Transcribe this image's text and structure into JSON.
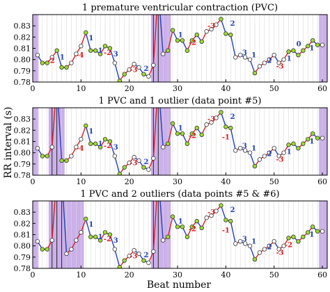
{
  "figure": {
    "xlabel": "Beat number",
    "ylabel": "RR interval (s)"
  },
  "chart_data": [
    {
      "type": "line",
      "title": "1 premature ventricular contraction (PVC)",
      "xlim": [
        0,
        61
      ],
      "ylim": [
        0.78,
        0.84
      ],
      "yticks": [
        0.78,
        0.79,
        0.8,
        0.81,
        0.82,
        0.83
      ],
      "xticks": [
        0,
        10,
        20,
        30,
        40,
        50,
        60
      ],
      "shaded": [
        [
          0,
          1.2
        ],
        [
          24.5,
          28.6
        ],
        [
          59.3,
          61
        ]
      ],
      "x": [
        1,
        2,
        3,
        4,
        5,
        6,
        7,
        8,
        9,
        10,
        11,
        12,
        13,
        14,
        15,
        16,
        17,
        18,
        19,
        20,
        21,
        22,
        23,
        24,
        25,
        26,
        27,
        28,
        29,
        30,
        31,
        32,
        33,
        34,
        35,
        36,
        37,
        38,
        39,
        40,
        41,
        42,
        43,
        44,
        45,
        46,
        47,
        48,
        49,
        50,
        51,
        52,
        53,
        54,
        55,
        56,
        57,
        58,
        59,
        60
      ],
      "y": [
        0.804,
        0.797,
        0.797,
        0.802,
        0.808,
        0.793,
        0.793,
        0.797,
        0.805,
        0.812,
        0.824,
        0.808,
        0.808,
        0.805,
        0.812,
        0.81,
        0.797,
        0.781,
        0.787,
        0.791,
        0.796,
        0.793,
        0.787,
        0.785,
        0.795,
        0.863,
        0.805,
        0.808,
        0.826,
        0.817,
        0.817,
        0.808,
        0.817,
        0.822,
        0.816,
        0.825,
        0.827,
        0.831,
        0.836,
        0.823,
        0.822,
        0.802,
        0.804,
        0.802,
        0.8,
        0.788,
        0.794,
        0.797,
        0.8,
        0.804,
        0.797,
        0.8,
        0.807,
        0.808,
        0.804,
        0.808,
        0.812,
        0.817,
        0.813,
        0.813
      ],
      "markers": [
        "o",
        "g",
        "g",
        "o",
        "g",
        "g",
        "g",
        "o",
        "o",
        "o",
        "g",
        "g",
        "g",
        "g",
        "g",
        "g",
        "o",
        "g",
        "g",
        "o",
        "o",
        "o",
        "g",
        "o",
        "o",
        "o",
        "o",
        "g",
        "g",
        "g",
        "g",
        "g",
        "g",
        "g",
        "g",
        "o",
        "o",
        "o",
        "g",
        "g",
        "g",
        "o",
        "o",
        "o",
        "o",
        "g",
        "o",
        "o",
        "o",
        "o",
        "o",
        "o",
        "g",
        "g",
        "g",
        "g",
        "g",
        "g",
        "g",
        "o"
      ],
      "vlines": [
        25,
        26
      ],
      "annotations": [
        {
          "text": "-2",
          "x": 3.8,
          "y": 0.797,
          "color": "#e31a1c"
        },
        {
          "text": "1",
          "x": 6.1,
          "y": 0.8,
          "color": "#1f3fbf"
        },
        {
          "text": "-4",
          "x": 9.8,
          "y": 0.802,
          "color": "#e31a1c"
        },
        {
          "text": "1",
          "x": 12.1,
          "y": 0.817,
          "color": "#1f3fbf"
        },
        {
          "text": "1",
          "x": 14.0,
          "y": 0.806,
          "color": "#1f3fbf"
        },
        {
          "text": "-2",
          "x": 15.5,
          "y": 0.804,
          "color": "#e31a1c"
        },
        {
          "text": "3",
          "x": 17.2,
          "y": 0.803,
          "color": "#1f3fbf"
        },
        {
          "text": "-3",
          "x": 20.9,
          "y": 0.789,
          "color": "#e31a1c"
        },
        {
          "text": "2",
          "x": 23.5,
          "y": 0.79,
          "color": "#1f3fbf"
        },
        {
          "text": "1",
          "x": 30.6,
          "y": 0.82,
          "color": "#1f3fbf"
        },
        {
          "text": "-2",
          "x": 33.1,
          "y": 0.813,
          "color": "#e31a1c"
        },
        {
          "text": "-3",
          "x": 37.0,
          "y": 0.828,
          "color": "#e31a1c"
        },
        {
          "text": "2",
          "x": 41.4,
          "y": 0.83,
          "color": "#1f3fbf"
        },
        {
          "text": "3",
          "x": 43.9,
          "y": 0.804,
          "color": "#1f3fbf"
        },
        {
          "text": "1",
          "x": 45.8,
          "y": 0.802,
          "color": "#1f3fbf"
        },
        {
          "text": "2",
          "x": 49.0,
          "y": 0.797,
          "color": "#1f3fbf"
        },
        {
          "text": "-3",
          "x": 51.2,
          "y": 0.792,
          "color": "#e31a1c"
        },
        {
          "text": "1",
          "x": 53.1,
          "y": 0.799,
          "color": "#1f3fbf"
        },
        {
          "text": "0",
          "x": 55.1,
          "y": 0.812,
          "color": "#1f3fbf"
        },
        {
          "text": "1",
          "x": 57.8,
          "y": 0.808,
          "color": "#1f3fbf"
        }
      ]
    },
    {
      "type": "line",
      "title": "1 PVC and 1 outlier (data point #5)",
      "xlim": [
        0,
        61
      ],
      "ylim": [
        0.78,
        0.84
      ],
      "yticks": [
        0.78,
        0.79,
        0.8,
        0.81,
        0.82,
        0.83
      ],
      "xticks": [
        0,
        10,
        20,
        30,
        40,
        50,
        60
      ],
      "shaded": [
        [
          0,
          1.2
        ],
        [
          3.3,
          6.6
        ],
        [
          24.5,
          28.6
        ],
        [
          59.3,
          61
        ]
      ],
      "x": [
        1,
        2,
        3,
        4,
        5,
        6,
        7,
        8,
        9,
        10,
        11,
        12,
        13,
        14,
        15,
        16,
        17,
        18,
        19,
        20,
        21,
        22,
        23,
        24,
        25,
        26,
        27,
        28,
        29,
        30,
        31,
        32,
        33,
        34,
        35,
        36,
        37,
        38,
        39,
        40,
        41,
        42,
        43,
        44,
        45,
        46,
        47,
        48,
        49,
        50,
        51,
        52,
        53,
        54,
        55,
        56,
        57,
        58,
        59,
        60
      ],
      "y": [
        0.804,
        0.797,
        0.797,
        0.805,
        0.863,
        0.793,
        0.793,
        0.797,
        0.805,
        0.812,
        0.824,
        0.808,
        0.808,
        0.805,
        0.812,
        0.81,
        0.797,
        0.781,
        0.787,
        0.791,
        0.796,
        0.793,
        0.787,
        0.785,
        0.795,
        0.863,
        0.805,
        0.808,
        0.826,
        0.817,
        0.817,
        0.808,
        0.817,
        0.822,
        0.816,
        0.825,
        0.827,
        0.831,
        0.836,
        0.823,
        0.822,
        0.802,
        0.804,
        0.802,
        0.8,
        0.788,
        0.794,
        0.797,
        0.8,
        0.804,
        0.797,
        0.8,
        0.807,
        0.808,
        0.804,
        0.808,
        0.812,
        0.817,
        0.813,
        0.813
      ],
      "markers": [
        "o",
        "g",
        "g",
        "o",
        "o",
        "g",
        "g",
        "o",
        "o",
        "o",
        "g",
        "g",
        "g",
        "g",
        "g",
        "g",
        "o",
        "g",
        "g",
        "o",
        "o",
        "o",
        "g",
        "o",
        "o",
        "o",
        "o",
        "g",
        "g",
        "g",
        "g",
        "g",
        "g",
        "g",
        "g",
        "o",
        "o",
        "o",
        "g",
        "g",
        "g",
        "o",
        "o",
        "o",
        "o",
        "g",
        "o",
        "o",
        "o",
        "o",
        "o",
        "o",
        "g",
        "g",
        "g",
        "g",
        "g",
        "g",
        "g",
        "o"
      ],
      "vlines": [
        4,
        5,
        25,
        26
      ],
      "annotations": [
        {
          "text": "-4",
          "x": 9.8,
          "y": 0.802,
          "color": "#e31a1c"
        },
        {
          "text": "1",
          "x": 12.1,
          "y": 0.817,
          "color": "#1f3fbf"
        },
        {
          "text": "1",
          "x": 14.0,
          "y": 0.806,
          "color": "#1f3fbf"
        },
        {
          "text": "-2",
          "x": 15.5,
          "y": 0.804,
          "color": "#e31a1c"
        },
        {
          "text": "3",
          "x": 17.2,
          "y": 0.803,
          "color": "#1f3fbf"
        },
        {
          "text": "-3",
          "x": 20.9,
          "y": 0.789,
          "color": "#e31a1c"
        },
        {
          "text": "2",
          "x": 23.5,
          "y": 0.79,
          "color": "#1f3fbf"
        },
        {
          "text": "1",
          "x": 30.6,
          "y": 0.82,
          "color": "#1f3fbf"
        },
        {
          "text": "-2",
          "x": 33.1,
          "y": 0.813,
          "color": "#e31a1c"
        },
        {
          "text": "-3",
          "x": 37.0,
          "y": 0.828,
          "color": "#e31a1c"
        },
        {
          "text": "-1",
          "x": 40.0,
          "y": 0.812,
          "color": "#e31a1c"
        },
        {
          "text": "2",
          "x": 41.4,
          "y": 0.83,
          "color": "#1f3fbf"
        },
        {
          "text": "3",
          "x": 43.9,
          "y": 0.804,
          "color": "#1f3fbf"
        },
        {
          "text": "1",
          "x": 45.8,
          "y": 0.802,
          "color": "#1f3fbf"
        },
        {
          "text": "2",
          "x": 49.0,
          "y": 0.797,
          "color": "#1f3fbf"
        },
        {
          "text": "-3",
          "x": 51.2,
          "y": 0.792,
          "color": "#e31a1c"
        },
        {
          "text": "1",
          "x": 53.1,
          "y": 0.799,
          "color": "#1f3fbf"
        },
        {
          "text": "1",
          "x": 57.8,
          "y": 0.808,
          "color": "#1f3fbf"
        }
      ]
    },
    {
      "type": "line",
      "title": "1 PVC and 2 outliers (data points #5 & #6)",
      "xlim": [
        0,
        61
      ],
      "ylim": [
        0.78,
        0.84
      ],
      "yticks": [
        0.78,
        0.79,
        0.8,
        0.81,
        0.82,
        0.83
      ],
      "xticks": [
        0,
        10,
        20,
        30,
        40,
        50,
        60
      ],
      "shaded": [
        [
          0,
          1.2
        ],
        [
          3.3,
          10.6
        ],
        [
          24.5,
          28.6
        ],
        [
          59.3,
          61
        ]
      ],
      "x": [
        1,
        2,
        3,
        4,
        5,
        6,
        7,
        8,
        9,
        10,
        11,
        12,
        13,
        14,
        15,
        16,
        17,
        18,
        19,
        20,
        21,
        22,
        23,
        24,
        25,
        26,
        27,
        28,
        29,
        30,
        31,
        32,
        33,
        34,
        35,
        36,
        37,
        38,
        39,
        40,
        41,
        42,
        43,
        44,
        45,
        46,
        47,
        48,
        49,
        50,
        51,
        52,
        53,
        54,
        55,
        56,
        57,
        58,
        59,
        60
      ],
      "y": [
        0.804,
        0.797,
        0.797,
        0.805,
        0.863,
        0.863,
        0.793,
        0.797,
        0.805,
        0.812,
        0.824,
        0.808,
        0.808,
        0.805,
        0.812,
        0.81,
        0.797,
        0.781,
        0.787,
        0.791,
        0.796,
        0.793,
        0.787,
        0.785,
        0.795,
        0.863,
        0.805,
        0.808,
        0.826,
        0.817,
        0.817,
        0.808,
        0.817,
        0.822,
        0.816,
        0.825,
        0.827,
        0.831,
        0.836,
        0.823,
        0.822,
        0.802,
        0.804,
        0.802,
        0.8,
        0.788,
        0.794,
        0.797,
        0.8,
        0.804,
        0.797,
        0.8,
        0.807,
        0.808,
        0.804,
        0.808,
        0.812,
        0.817,
        0.813,
        0.813
      ],
      "markers": [
        "o",
        "g",
        "g",
        "o",
        "o",
        "o",
        "o",
        "o",
        "o",
        "o",
        "g",
        "g",
        "g",
        "g",
        "g",
        "g",
        "o",
        "g",
        "g",
        "o",
        "o",
        "o",
        "g",
        "o",
        "o",
        "o",
        "o",
        "g",
        "g",
        "g",
        "g",
        "g",
        "g",
        "g",
        "g",
        "o",
        "o",
        "o",
        "g",
        "g",
        "g",
        "o",
        "o",
        "o",
        "o",
        "g",
        "o",
        "o",
        "o",
        "o",
        "o",
        "o",
        "g",
        "g",
        "g",
        "g",
        "g",
        "g",
        "g",
        "o"
      ],
      "vlines": [
        4,
        5,
        6,
        25,
        26
      ],
      "annotations": [
        {
          "text": "1",
          "x": 12.1,
          "y": 0.817,
          "color": "#1f3fbf"
        },
        {
          "text": "1",
          "x": 14.0,
          "y": 0.806,
          "color": "#1f3fbf"
        },
        {
          "text": "-2",
          "x": 15.5,
          "y": 0.804,
          "color": "#e31a1c"
        },
        {
          "text": "3",
          "x": 17.2,
          "y": 0.803,
          "color": "#1f3fbf"
        },
        {
          "text": "-3",
          "x": 20.9,
          "y": 0.789,
          "color": "#e31a1c"
        },
        {
          "text": "2",
          "x": 23.5,
          "y": 0.79,
          "color": "#1f3fbf"
        },
        {
          "text": "1",
          "x": 30.6,
          "y": 0.82,
          "color": "#1f3fbf"
        },
        {
          "text": "-2",
          "x": 33.1,
          "y": 0.813,
          "color": "#e31a1c"
        },
        {
          "text": "-3",
          "x": 37.0,
          "y": 0.828,
          "color": "#e31a1c"
        },
        {
          "text": "-1",
          "x": 40.0,
          "y": 0.812,
          "color": "#e31a1c"
        },
        {
          "text": "2",
          "x": 41.4,
          "y": 0.83,
          "color": "#1f3fbf"
        },
        {
          "text": "3",
          "x": 43.9,
          "y": 0.804,
          "color": "#1f3fbf"
        },
        {
          "text": "1",
          "x": 45.8,
          "y": 0.802,
          "color": "#1f3fbf"
        },
        {
          "text": "2",
          "x": 49.0,
          "y": 0.797,
          "color": "#1f3fbf"
        },
        {
          "text": "-3",
          "x": 51.2,
          "y": 0.792,
          "color": "#e31a1c"
        },
        {
          "text": "-2",
          "x": 53.0,
          "y": 0.799,
          "color": "#e31a1c"
        },
        {
          "text": "1",
          "x": 57.8,
          "y": 0.808,
          "color": "#1f3fbf"
        }
      ]
    }
  ],
  "colors": {
    "shade": "#cbb0ea",
    "rise": "#e31a1c",
    "fall": "#1f3fbf",
    "marker_green": "#9ddc2c",
    "marker_white": "#ffffff",
    "grid": "#d8d8d8",
    "vline": "#222222"
  }
}
